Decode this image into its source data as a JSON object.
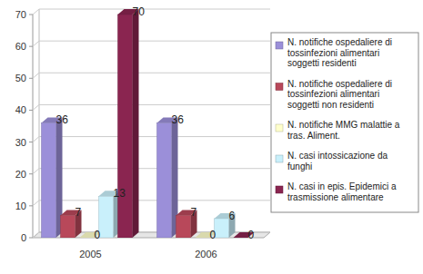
{
  "chart_data": {
    "type": "bar",
    "categories": [
      "2005",
      "2006"
    ],
    "series": [
      {
        "name": "N. notifiche ospedaliere di tossinfezioni alimentari soggetti residenti",
        "color": "#9b8fd9",
        "values": [
          36,
          36
        ]
      },
      {
        "name": "N. notifiche ospedaliere di tossinfezioni alimentari soggetti non residenti",
        "color": "#b8485a",
        "values": [
          7,
          7
        ]
      },
      {
        "name": "N. notifiche MMG malattie a tras. Aliment.",
        "color": "#ffffcc",
        "values": [
          0,
          0
        ]
      },
      {
        "name": "N. casi intossicazione da funghi",
        "color": "#c9f0fb",
        "values": [
          13,
          6
        ]
      },
      {
        "name": "N. casi in epis. Epidemici a trasmissione alimentare",
        "color": "#8a2550",
        "values": [
          70,
          0
        ]
      }
    ],
    "ylim": [
      0,
      70
    ],
    "yticks": [
      0,
      10,
      20,
      30,
      40,
      50,
      60,
      70
    ],
    "grid": true,
    "data_labels": true,
    "legend": "right"
  }
}
